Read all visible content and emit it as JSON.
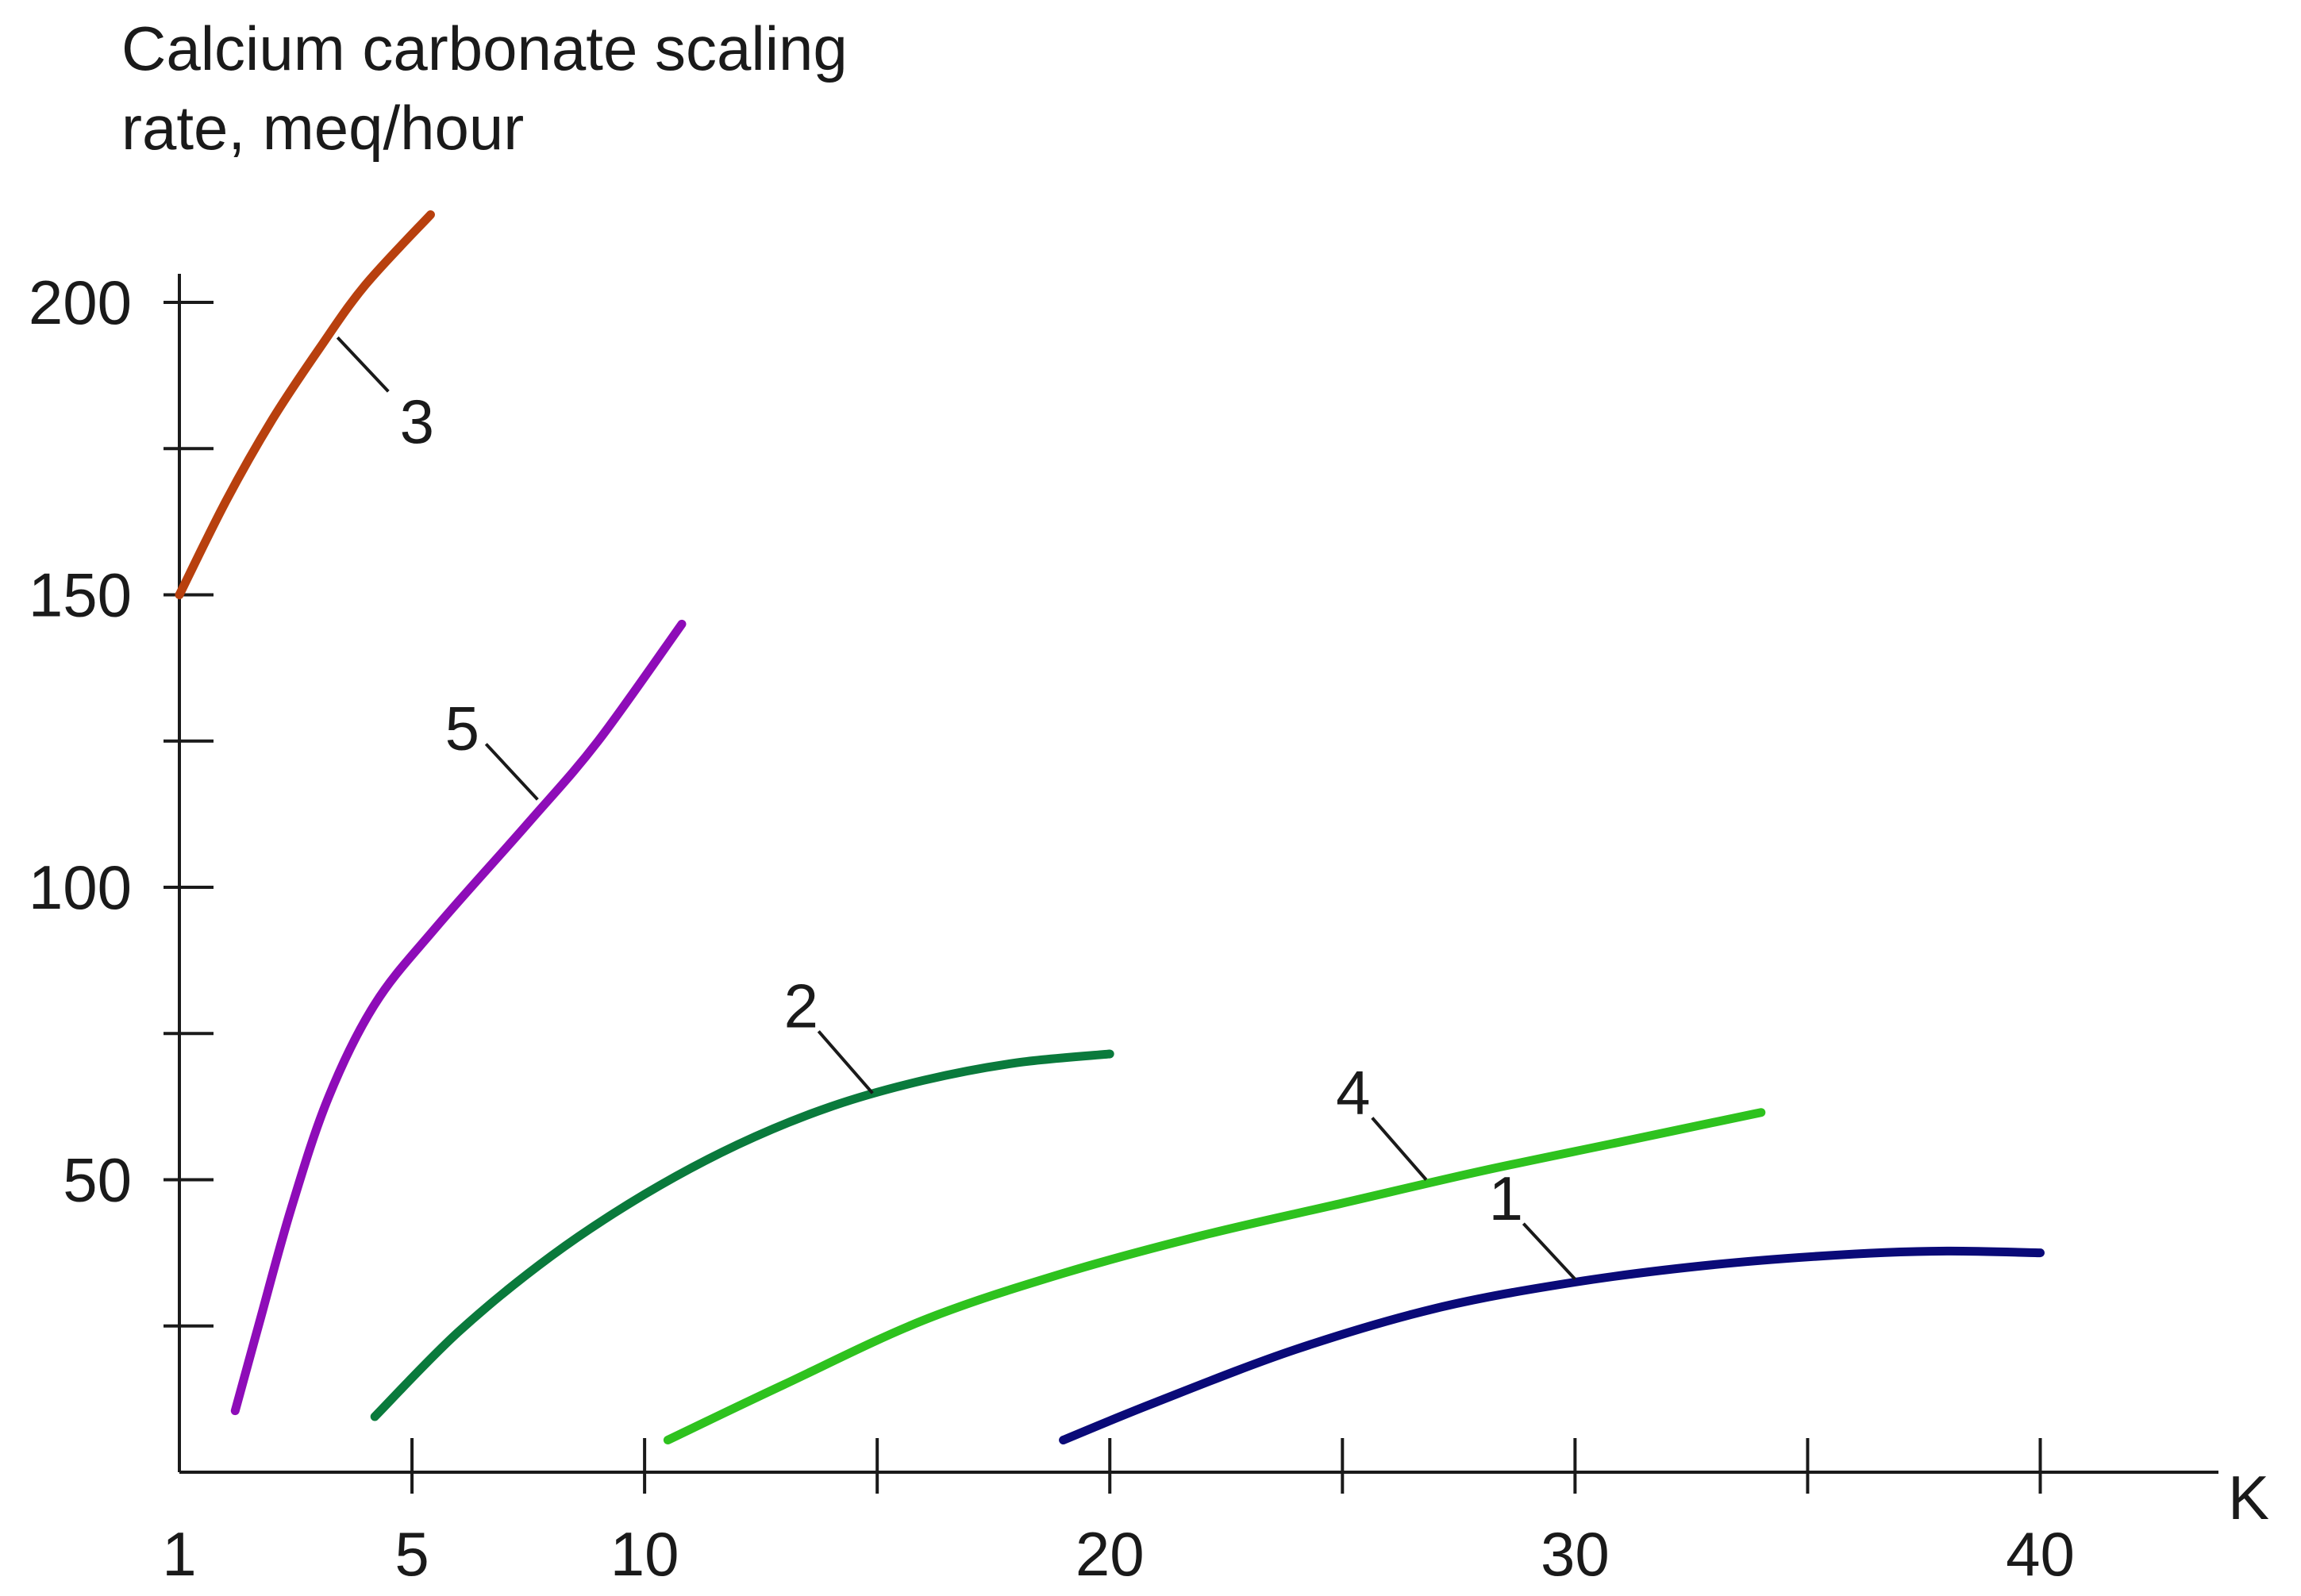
{
  "chart_data": {
    "type": "line",
    "ylabel_lines": [
      "Calcium carbonate scaling",
      "rate, meq/hour"
    ],
    "xlabel": "K",
    "xlim": [
      0,
      41.8
    ],
    "ylim": [
      0,
      200
    ],
    "x_tick_labels": [
      {
        "x": 0,
        "text": "1"
      },
      {
        "x": 5,
        "text": "5"
      },
      {
        "x": 10,
        "text": "10"
      },
      {
        "x": 20,
        "text": "20"
      },
      {
        "x": 30,
        "text": "30"
      },
      {
        "x": 40,
        "text": "40"
      }
    ],
    "x_tick_marks": [
      5,
      10,
      15,
      20,
      25,
      30,
      35,
      40
    ],
    "y_tick_labels": [
      50,
      100,
      150,
      200
    ],
    "y_tick_marks": [
      25,
      50,
      75,
      100,
      125,
      150,
      175,
      200
    ],
    "series": [
      {
        "label": "1",
        "color": "#0a0a78",
        "points": [
          [
            19,
            5.5
          ],
          [
            21,
            12
          ],
          [
            24,
            21
          ],
          [
            27,
            28
          ],
          [
            30,
            32.5
          ],
          [
            33,
            35.5
          ],
          [
            36,
            37.3
          ],
          [
            38,
            37.8
          ],
          [
            40,
            37.5
          ]
        ],
        "label_anchor": [
          30,
          33
        ]
      },
      {
        "label": "2",
        "color": "#0a7a3c",
        "points": [
          [
            4.2,
            9.5
          ],
          [
            6,
            24
          ],
          [
            8,
            37
          ],
          [
            10,
            47.5
          ],
          [
            12,
            56
          ],
          [
            14,
            62.5
          ],
          [
            16,
            67
          ],
          [
            18,
            70
          ],
          [
            20,
            71.5
          ]
        ],
        "label_anchor": [
          14.9,
          64.8
        ]
      },
      {
        "label": "3",
        "color": "#b8400e",
        "points": [
          [
            0,
            150
          ],
          [
            1,
            166
          ],
          [
            2,
            180
          ],
          [
            3,
            192
          ],
          [
            4,
            203
          ],
          [
            5.4,
            215
          ]
        ],
        "label_anchor": [
          3.4,
          194
        ]
      },
      {
        "label": "4",
        "color": "#2ec21e",
        "points": [
          [
            10.5,
            5.5
          ],
          [
            13,
            15
          ],
          [
            16,
            26
          ],
          [
            19,
            34
          ],
          [
            22,
            40.5
          ],
          [
            25,
            46
          ],
          [
            28,
            51.5
          ],
          [
            31,
            56.5
          ],
          [
            34,
            61.5
          ]
        ],
        "label_anchor": [
          26.8,
          50
        ]
      },
      {
        "label": "5",
        "color": "#8e0cb8",
        "points": [
          [
            1.2,
            10.5
          ],
          [
            1.7,
            25
          ],
          [
            2.4,
            45
          ],
          [
            3.2,
            64
          ],
          [
            4.2,
            80
          ],
          [
            5.5,
            93
          ],
          [
            7.5,
            111
          ],
          [
            9,
            125
          ],
          [
            10.8,
            145
          ]
        ],
        "label_anchor": [
          7.7,
          115
        ]
      }
    ]
  }
}
